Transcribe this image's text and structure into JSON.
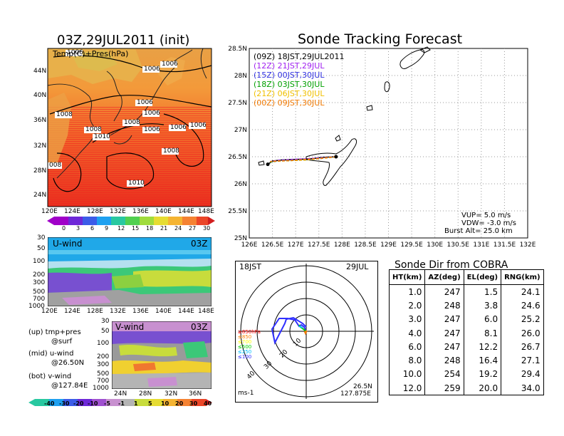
{
  "map_panel": {
    "title": "03Z,29JUL2011 (init)",
    "subtitle": "Temp(C)+Pres(hPa)",
    "lat_ticks": [
      "44N",
      "40N",
      "36N",
      "32N",
      "28N",
      "24N"
    ],
    "lon_ticks": [
      "120E",
      "124E",
      "128E",
      "132E",
      "136E",
      "140E",
      "144E",
      "148E"
    ],
    "isobar_labels": [
      "1006",
      "1006",
      "1008",
      "1006",
      "1008",
      "1006",
      "1006",
      "1006",
      "1008",
      "1006",
      "1006",
      "1010",
      "1008",
      "008",
      "1010"
    ]
  },
  "temp_colorbar": {
    "ticks": [
      "0",
      "3",
      "6",
      "9",
      "12",
      "15",
      "18",
      "21",
      "24",
      "27",
      "30"
    ]
  },
  "u_panel": {
    "label": "U-wind",
    "time": "03Z",
    "p_ticks": [
      "30",
      "50",
      "100",
      "200",
      "300",
      "500",
      "700",
      "1000"
    ],
    "lon_ticks": [
      "120E",
      "124E",
      "128E",
      "132E",
      "136E",
      "140E",
      "144E",
      "148E"
    ]
  },
  "v_panel": {
    "label": "V-wind",
    "time": "03Z",
    "p_ticks": [
      "30",
      "50",
      "100",
      "200",
      "300",
      "500",
      "700",
      "1000"
    ],
    "lat_ticks": [
      "24N",
      "28N",
      "32N",
      "36N"
    ]
  },
  "legend_text": [
    "(up) tmp+pres",
    "@surf",
    "(mid) u-wind",
    "@26.50N",
    "(bot) v-wind",
    "@127.84E"
  ],
  "wind_colorbar": {
    "ticks": [
      "-40",
      "-30",
      "-20",
      "-10",
      "-5",
      "-1",
      "1",
      "5",
      "10",
      "20",
      "30",
      "40"
    ]
  },
  "chart_data": [
    {
      "type": "line",
      "title": "Sonde Tracking Forecast",
      "xlabel": "",
      "ylabel": "",
      "x_ticks": [
        "126E",
        "126.5E",
        "127E",
        "127.5E",
        "128E",
        "128.5E",
        "129E",
        "129.5E",
        "130E",
        "130.5E",
        "131E",
        "131.5E",
        "132E"
      ],
      "y_ticks": [
        "28.5N",
        "28N",
        "27.5N",
        "27N",
        "26.5N",
        "26N",
        "25.5N",
        "25N"
      ],
      "xlim": [
        126,
        132
      ],
      "ylim": [
        25,
        28.5
      ],
      "grid": true,
      "legend_position": "top-left",
      "series": [
        {
          "name": "(09Z)  18JST,29JUL2011",
          "color": "#000000",
          "x": [
            127.87,
            127.6,
            127.3,
            127.0,
            126.7,
            126.5,
            126.45,
            126.4
          ],
          "y": [
            26.5,
            26.49,
            26.46,
            26.45,
            26.44,
            26.42,
            26.39,
            26.36
          ]
        },
        {
          "name": "(12Z)  21JST,29JUL",
          "color": "#a020f0",
          "x": [
            127.87,
            127.55,
            127.2,
            126.9,
            126.6,
            126.45
          ],
          "y": [
            26.5,
            26.48,
            26.46,
            26.45,
            26.43,
            26.41
          ]
        },
        {
          "name": "(15Z)  00JST,30JUL",
          "color": "#3030e0",
          "x": [
            127.87,
            127.55,
            127.2,
            126.9,
            126.6,
            126.45
          ],
          "y": [
            26.5,
            26.47,
            26.45,
            26.44,
            26.42,
            26.4
          ]
        },
        {
          "name": "(18Z)  03JST,30JUL",
          "color": "#00a000",
          "x": [
            127.87,
            127.55,
            127.2,
            126.9,
            126.6,
            126.45
          ],
          "y": [
            26.5,
            26.47,
            26.44,
            26.43,
            26.42,
            26.4
          ]
        },
        {
          "name": "(21Z)  06JST,30JUL",
          "color": "#f0c000",
          "x": [
            127.87,
            127.55,
            127.2,
            126.9,
            126.6,
            126.45
          ],
          "y": [
            26.5,
            26.47,
            26.44,
            26.43,
            26.42,
            26.41
          ]
        },
        {
          "name": "(00Z)  09JST,30JUL",
          "color": "#f07800",
          "x": [
            127.87,
            127.55,
            127.2,
            126.9,
            126.6,
            126.45
          ],
          "y": [
            26.5,
            26.47,
            26.45,
            26.43,
            26.42,
            26.41
          ]
        }
      ],
      "annotations": [
        "VUP=  5.0  m/s",
        "VDW= -3.0  m/s",
        "Burst Alt=  25.0  km"
      ]
    },
    {
      "type": "table",
      "title": "Sonde Dir from COBRA",
      "columns": [
        "HT(km)",
        "AZ(deg)",
        "EL(deg)",
        "RNG(km)"
      ],
      "rows": [
        [
          "1.0",
          "247",
          "1.5",
          "24.1"
        ],
        [
          "2.0",
          "248",
          "3.8",
          "24.6"
        ],
        [
          "3.0",
          "247",
          "6.0",
          "25.2"
        ],
        [
          "4.0",
          "247",
          "8.1",
          "26.0"
        ],
        [
          "6.0",
          "247",
          "12.2",
          "26.7"
        ],
        [
          "8.0",
          "248",
          "16.4",
          "27.1"
        ],
        [
          "10.0",
          "254",
          "19.2",
          "29.4"
        ],
        [
          "12.0",
          "259",
          "20.0",
          "34.0"
        ]
      ]
    }
  ],
  "hodograph": {
    "time_label": "18JST",
    "date_label": "29JUL",
    "ring_labels": [
      "10",
      "20",
      "30",
      "40"
    ],
    "level_labels": [
      "≥850hPa",
      "≤850",
      "≤700",
      "≤500",
      "≤250",
      "≤100"
    ],
    "level_colors": [
      "#ff0000",
      "#ff8000",
      "#ffff00",
      "#00d000",
      "#00c0ff",
      "#3030ff"
    ],
    "units": "ms-1",
    "loc_lat": "26.5N",
    "loc_lon": "127.875E"
  }
}
